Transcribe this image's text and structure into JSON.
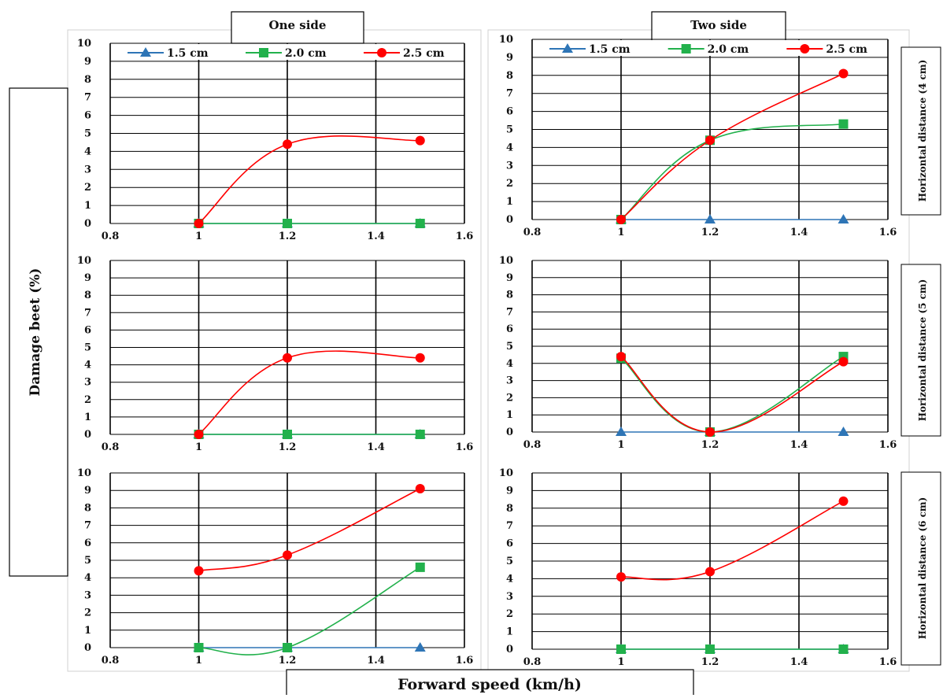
{
  "columns": [
    "One side",
    "Two side"
  ],
  "rows": [
    "Horizontal distance (4 cm)",
    "Horizontal distance (5 cm)",
    "Horizontal distance (6 cm)"
  ],
  "ylabel": "Damage beet (%)",
  "xlabel": "Forward speed (km/h)",
  "legend": [
    "1.5 cm",
    "2.0 cm",
    "2.5 cm"
  ],
  "colors": {
    "s15": "#2e75b6",
    "s20": "#22b14c",
    "s25": "#ff0000",
    "grid": "#000000",
    "frame": "#d0d0d0"
  },
  "chart_data": [
    {
      "type": "line",
      "col": "One side",
      "row": "Horizontal distance (4 cm)",
      "x": [
        1,
        1.2,
        1.5
      ],
      "xlim": [
        0.8,
        1.6
      ],
      "xticks": [
        "0.8",
        "1",
        "1.2",
        "1.4",
        "1.6"
      ],
      "ylim": [
        0,
        10
      ],
      "yticks": [
        "0",
        "1",
        "2",
        "3",
        "4",
        "5",
        "6",
        "7",
        "8",
        "9",
        "10"
      ],
      "legend": "top",
      "series": [
        {
          "name": "1.5 cm",
          "values": [
            0,
            0,
            0
          ]
        },
        {
          "name": "2.0 cm",
          "values": [
            0,
            0,
            0
          ]
        },
        {
          "name": "2.5 cm",
          "values": [
            0,
            4.4,
            4.6
          ]
        }
      ]
    },
    {
      "type": "line",
      "col": "Two side",
      "row": "Horizontal distance (4 cm)",
      "x": [
        1,
        1.2,
        1.5
      ],
      "xlim": [
        0.8,
        1.6
      ],
      "xticks": [
        "0.8",
        "1",
        "1.2",
        "1.4",
        "1.6"
      ],
      "ylim": [
        0,
        10
      ],
      "yticks": [
        "0",
        "1",
        "2",
        "3",
        "4",
        "5",
        "6",
        "7",
        "8",
        "9",
        "10"
      ],
      "legend": "top",
      "series": [
        {
          "name": "1.5 cm",
          "values": [
            0,
            0,
            0
          ]
        },
        {
          "name": "2.0 cm",
          "values": [
            0,
            4.4,
            5.3
          ]
        },
        {
          "name": "2.5 cm",
          "values": [
            0,
            4.4,
            8.1
          ]
        }
      ]
    },
    {
      "type": "line",
      "col": "One side",
      "row": "Horizontal distance (5 cm)",
      "x": [
        1,
        1.2,
        1.5
      ],
      "xlim": [
        0.8,
        1.6
      ],
      "xticks": [
        "0.8",
        "1",
        "1.2",
        "1.4",
        "1.6"
      ],
      "ylim": [
        0,
        10
      ],
      "yticks": [
        "0",
        "1",
        "2",
        "3",
        "4",
        "5",
        "6",
        "7",
        "8",
        "9",
        "10"
      ],
      "series": [
        {
          "name": "1.5 cm",
          "values": [
            0,
            0,
            0
          ]
        },
        {
          "name": "2.0 cm",
          "values": [
            0,
            0,
            0
          ]
        },
        {
          "name": "2.5 cm",
          "values": [
            0,
            4.4,
            4.4
          ]
        }
      ]
    },
    {
      "type": "line",
      "col": "Two side",
      "row": "Horizontal distance (5 cm)",
      "x": [
        1,
        1.2,
        1.5
      ],
      "xlim": [
        0.8,
        1.6
      ],
      "xticks": [
        "0.8",
        "1",
        "1.2",
        "1.4",
        "1.6"
      ],
      "ylim": [
        0,
        10
      ],
      "yticks": [
        "0",
        "1",
        "2",
        "3",
        "4",
        "5",
        "6",
        "7",
        "8",
        "9",
        "10"
      ],
      "series": [
        {
          "name": "1.5 cm",
          "values": [
            0,
            0,
            0
          ]
        },
        {
          "name": "2.0 cm",
          "values": [
            4.3,
            0,
            4.4
          ]
        },
        {
          "name": "2.5 cm",
          "values": [
            4.4,
            0,
            4.1
          ]
        }
      ]
    },
    {
      "type": "line",
      "col": "One side",
      "row": "Horizontal distance (6 cm)",
      "x": [
        1,
        1.2,
        1.5
      ],
      "xlim": [
        0.8,
        1.6
      ],
      "xticks": [
        "0.8",
        "1",
        "1.2",
        "1.4",
        "1.6"
      ],
      "ylim": [
        0,
        10
      ],
      "yticks": [
        "0",
        "1",
        "2",
        "3",
        "4",
        "5",
        "6",
        "7",
        "8",
        "9",
        "10"
      ],
      "series": [
        {
          "name": "1.5 cm",
          "values": [
            0,
            0,
            0
          ]
        },
        {
          "name": "2.0 cm",
          "values": [
            0,
            0,
            4.6
          ]
        },
        {
          "name": "2.5 cm",
          "values": [
            4.4,
            5.3,
            9.1
          ]
        }
      ]
    },
    {
      "type": "line",
      "col": "Two side",
      "row": "Horizontal distance (6 cm)",
      "x": [
        1,
        1.2,
        1.5
      ],
      "xlim": [
        0.8,
        1.6
      ],
      "xticks": [
        "0.8",
        "1",
        "1.2",
        "1.4",
        "1.6"
      ],
      "ylim": [
        0,
        10
      ],
      "yticks": [
        "0",
        "1",
        "2",
        "3",
        "4",
        "5",
        "6",
        "7",
        "8",
        "9",
        "10"
      ],
      "series": [
        {
          "name": "1.5 cm",
          "values": [
            0,
            0,
            0
          ]
        },
        {
          "name": "2.0 cm",
          "values": [
            0,
            0,
            0
          ]
        },
        {
          "name": "2.5 cm",
          "values": [
            4.1,
            4.4,
            8.4
          ]
        }
      ]
    }
  ]
}
